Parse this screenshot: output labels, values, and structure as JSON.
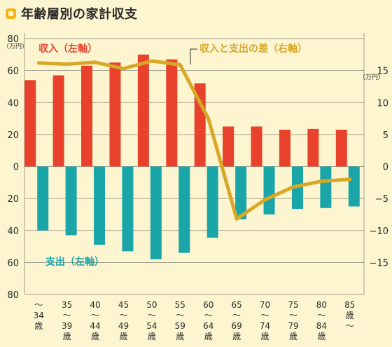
{
  "title": "年齢層別の家計収支",
  "chart_data": {
    "type": "bar",
    "title": "年齢層別の家計収支",
    "categories": [
      "〜34歳",
      "35〜39歳",
      "40〜44歳",
      "45〜49歳",
      "50〜54歳",
      "55〜59歳",
      "60〜64歳",
      "65〜69歳",
      "70〜74歳",
      "75〜79歳",
      "80〜84歳",
      "85歳〜"
    ],
    "category_ticks": [
      [
        "〜",
        "34",
        "歳"
      ],
      [
        "35",
        "〜",
        "39",
        "歳"
      ],
      [
        "40",
        "〜",
        "44",
        "歳"
      ],
      [
        "45",
        "〜",
        "49",
        "歳"
      ],
      [
        "50",
        "〜",
        "54",
        "歳"
      ],
      [
        "55",
        "〜",
        "59",
        "歳"
      ],
      [
        "60",
        "〜",
        "64",
        "歳"
      ],
      [
        "65",
        "〜",
        "69",
        "歳"
      ],
      [
        "70",
        "〜",
        "74",
        "歳"
      ],
      [
        "75",
        "〜",
        "79",
        "歳"
      ],
      [
        "80",
        "〜",
        "84",
        "歳"
      ],
      [
        "85",
        "歳",
        "〜"
      ]
    ],
    "series": [
      {
        "name": "収入（左軸）",
        "kind": "bar",
        "axis": "left",
        "color": "#e8412c",
        "values": [
          54,
          57,
          63,
          65,
          70,
          67,
          52,
          25,
          25,
          23,
          23.5,
          23
        ]
      },
      {
        "name": "支出（左軸）",
        "kind": "bar",
        "axis": "left",
        "color": "#1aa6a8",
        "values": [
          -40,
          -43,
          -49,
          -53,
          -58,
          -54,
          -44.5,
          -33,
          -30,
          -26.5,
          -26,
          -25
        ]
      },
      {
        "name": "収入と支出の差（右軸）",
        "kind": "line",
        "axis": "right",
        "color": "#d7a826",
        "values": [
          16.2,
          16,
          16.3,
          15.3,
          16.5,
          15.9,
          7.5,
          -8.2,
          -5.2,
          -3.2,
          -2.3,
          -2
        ]
      }
    ],
    "left_axis": {
      "unit": "（万円）",
      "ticks": [
        {
          "value": 80,
          "label": "80"
        },
        {
          "value": 60,
          "label": "60"
        },
        {
          "value": 40,
          "label": "40"
        },
        {
          "value": 20,
          "label": "20"
        },
        {
          "value": 0,
          "label": "0"
        },
        {
          "value": -20,
          "label": "20"
        },
        {
          "value": -40,
          "label": "40"
        },
        {
          "value": -60,
          "label": "60"
        },
        {
          "value": -80,
          "label": "80"
        }
      ],
      "ylim": [
        -80,
        80
      ]
    },
    "right_axis": {
      "unit": "（万円）",
      "ticks": [
        {
          "value": 15,
          "label": "15"
        },
        {
          "value": 10,
          "label": "10"
        },
        {
          "value": 5,
          "label": "5"
        },
        {
          "value": 0,
          "label": "0"
        },
        {
          "value": -5,
          "label": "−5"
        },
        {
          "value": -10,
          "label": "−10"
        },
        {
          "value": -15,
          "label": "−15"
        }
      ],
      "ylim": [
        -20,
        20
      ]
    },
    "annotations": {
      "income": "収入（左軸）",
      "expense": "支出（左軸）",
      "diff": "収入と支出の差（右軸）"
    },
    "grid": true,
    "colors": {
      "grid": "#8a8a80",
      "axis_text": "#2b2b2b",
      "background": "#fcf5cf"
    }
  }
}
